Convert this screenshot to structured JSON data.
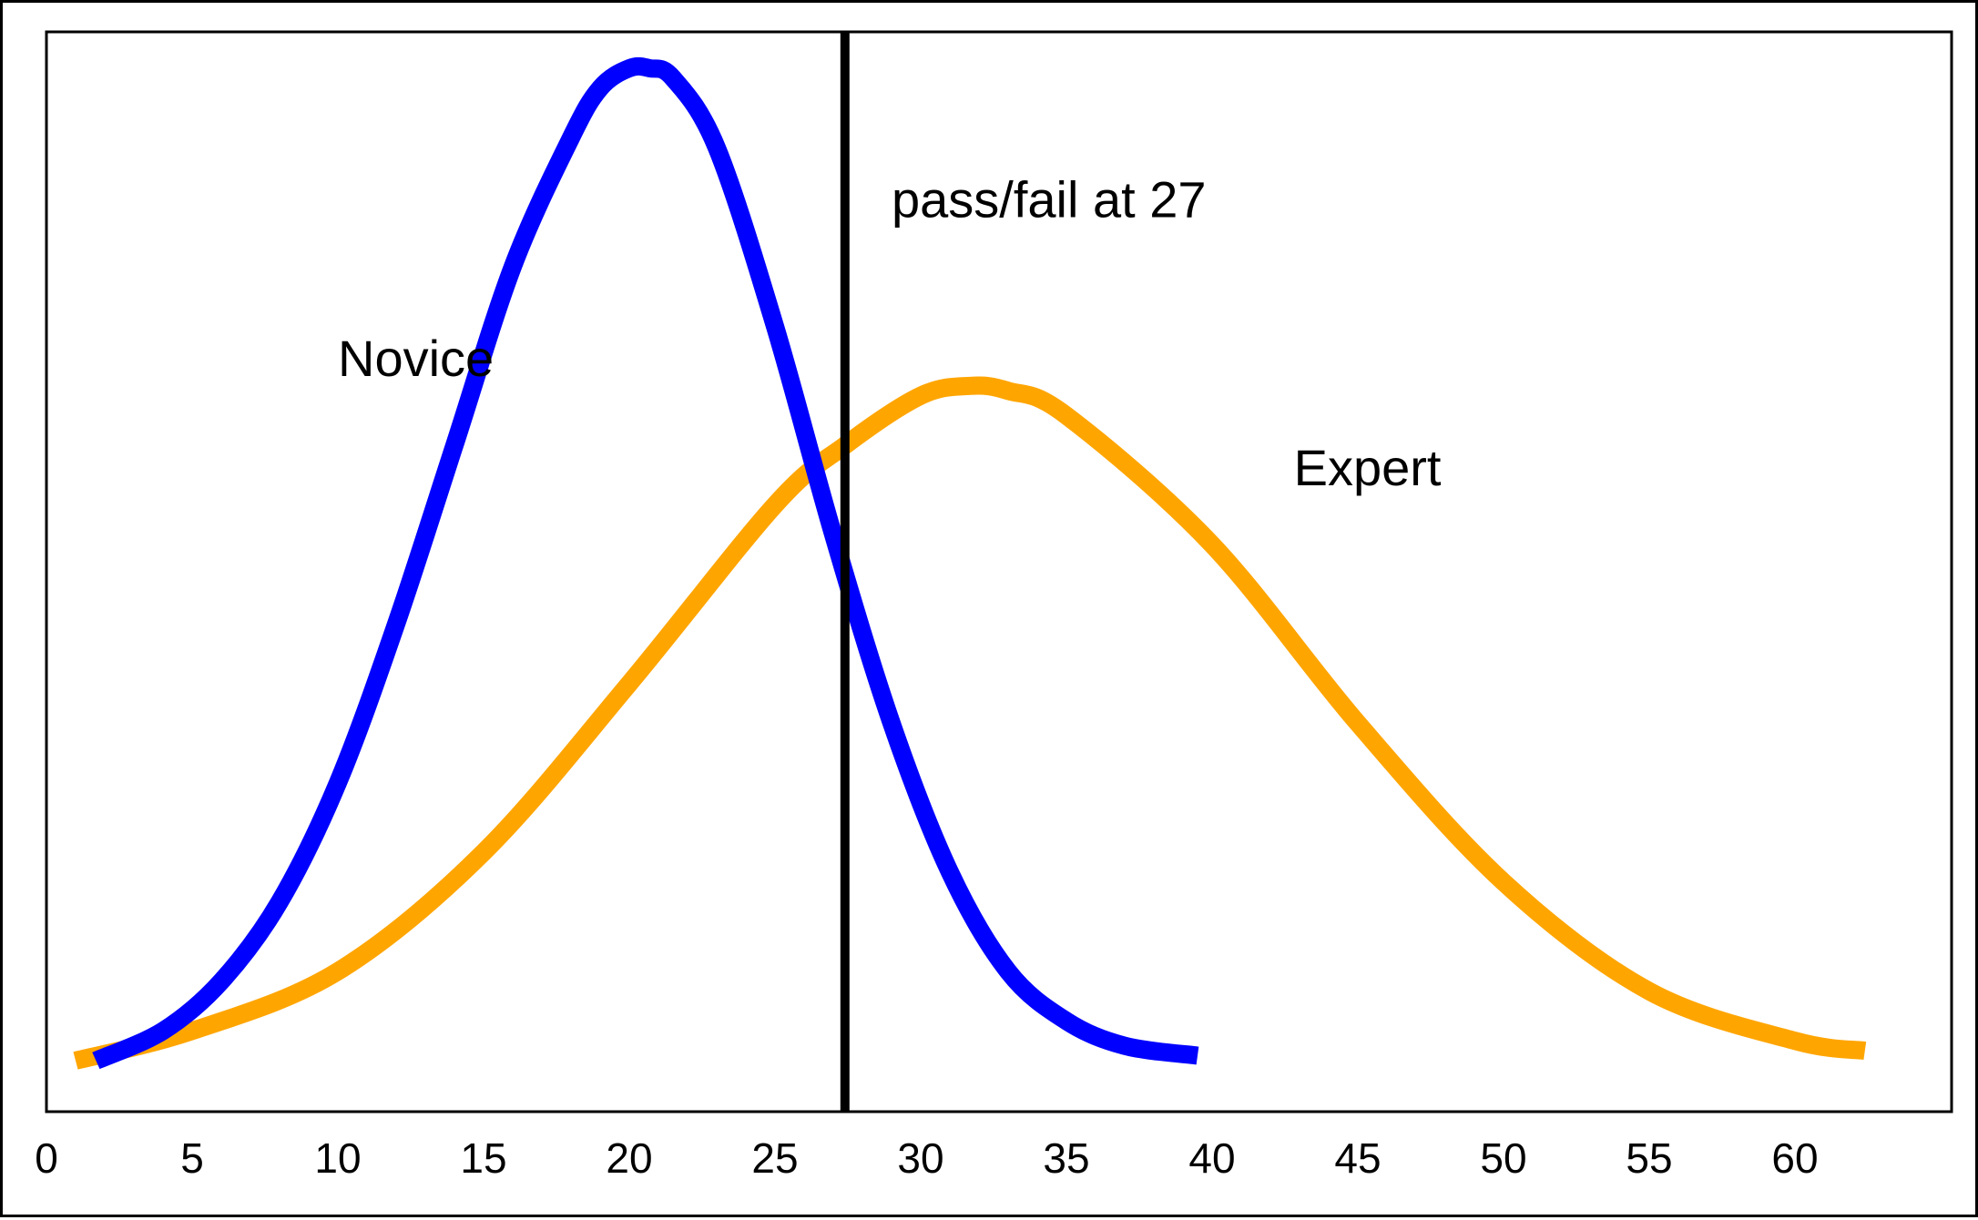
{
  "chart_data": {
    "type": "line",
    "title": "",
    "xlabel": "",
    "ylabel": "",
    "xlim": [
      0,
      65
    ],
    "ylim": [
      0,
      1
    ],
    "x_ticks": [
      "0",
      "5",
      "10",
      "15",
      "20",
      "25",
      "30",
      "35",
      "40",
      "45",
      "50",
      "55",
      "60"
    ],
    "grid": false,
    "legend": "none",
    "series": [
      {
        "name": "Novice",
        "color": "#0000ff",
        "x": [
          1.7,
          4,
          6,
          8,
          10,
          12,
          14,
          16,
          18,
          19,
          20,
          20.7,
          21.5,
          23,
          25,
          27,
          29,
          31,
          33,
          35,
          37,
          39.5
        ],
        "y": [
          0.0,
          0.03,
          0.08,
          0.16,
          0.28,
          0.44,
          0.62,
          0.8,
          0.93,
          0.98,
          1.0,
          1.0,
          0.99,
          0.92,
          0.74,
          0.53,
          0.34,
          0.19,
          0.09,
          0.04,
          0.015,
          0.005
        ]
      },
      {
        "name": "Expert",
        "color": "#ffa500",
        "x": [
          1,
          5,
          10,
          15,
          20,
          25,
          27.4,
          30,
          31.7,
          33,
          35,
          40,
          45,
          50,
          55,
          60,
          62.4
        ],
        "y": [
          0.0,
          0.03,
          0.09,
          0.21,
          0.38,
          0.56,
          0.62,
          0.67,
          0.68,
          0.675,
          0.65,
          0.52,
          0.34,
          0.18,
          0.07,
          0.02,
          0.01
        ]
      }
    ],
    "annotations": [
      {
        "text": "Novice",
        "x": 10,
        "y": 0.69
      },
      {
        "text": "Expert",
        "x": 42.8,
        "y": 0.58
      },
      {
        "text": "pass/fail at 27",
        "x": 29,
        "y": 0.85
      }
    ],
    "threshold": {
      "x": 27.4,
      "color": "#000000"
    }
  }
}
